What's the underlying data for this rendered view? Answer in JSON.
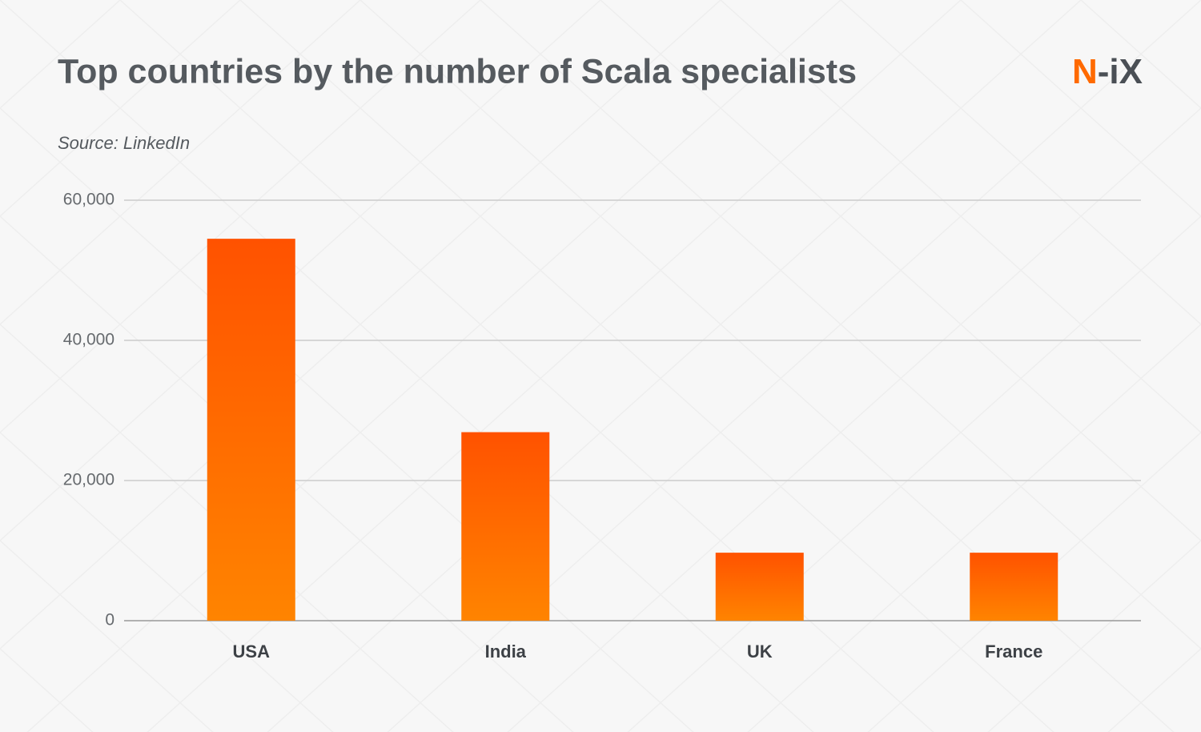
{
  "chart_data": {
    "type": "bar",
    "title": "Top countries by the number of Scala specialists",
    "subtitle": "Source: LinkedIn",
    "logo": {
      "accent": "N",
      "rest": "-iX"
    },
    "categories": [
      "USA",
      "India",
      "UK",
      "France"
    ],
    "values": [
      54500,
      26900,
      9700,
      9700
    ],
    "color": "#ff5200",
    "color_end": "#ff8400",
    "ylim": [
      0,
      60000
    ],
    "yticks": [
      0,
      {
        "value": 20000,
        "label": "20,000"
      },
      {
        "value": 40000,
        "label": "40,000"
      },
      {
        "value": 60000,
        "label": "60,000"
      }
    ],
    "grid": true
  }
}
